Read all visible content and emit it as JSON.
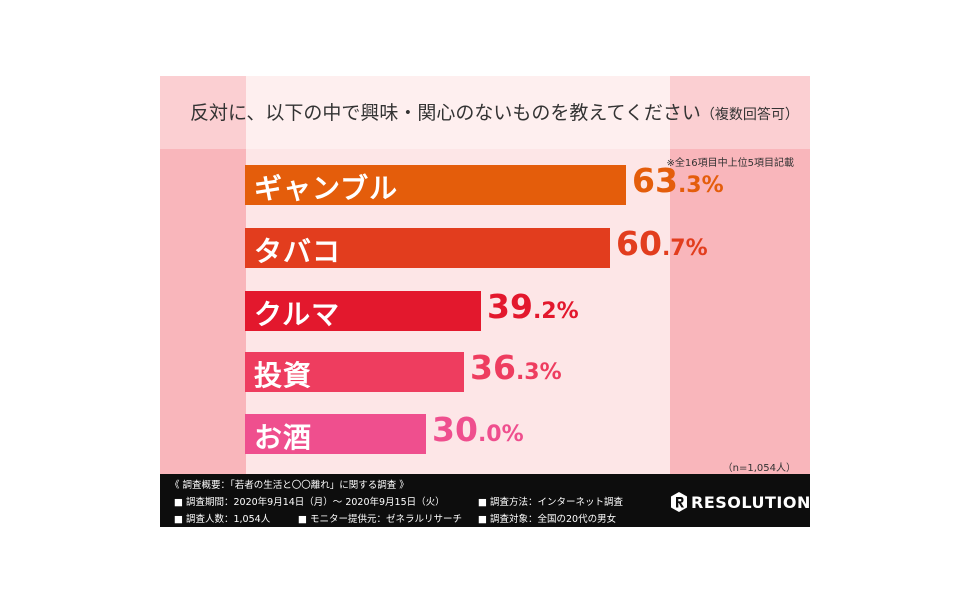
{
  "title": "反対に、以下の中で興味・関心のないものを教えてください",
  "title_suffix": "（複数回答可）",
  "note": "※全16項目中上位5項目記載",
  "sample_size": "（n=1,054人）",
  "colors": [
    "#e45d0b",
    "#e23d1e",
    "#e3182d",
    "#ee3d5f",
    "#ef4f8e"
  ],
  "chart_data": {
    "type": "bar",
    "orientation": "horizontal",
    "categories": [
      "ギャンブル",
      "タバコ",
      "クルマ",
      "投資",
      "お酒"
    ],
    "values": [
      63.3,
      60.7,
      39.2,
      36.3,
      30.0
    ],
    "value_labels": [
      [
        "63",
        ".3%"
      ],
      [
        "60",
        ".7%"
      ],
      [
        "39",
        ".2%"
      ],
      [
        "36",
        ".3%"
      ],
      [
        "30",
        ".0%"
      ]
    ],
    "unit": "%"
  },
  "footer": {
    "heading": "《 調査概要：「若者の生活と〇〇離れ」に関する調査 》",
    "period": "■ 調査期間：2020年9月14日（月）～ 2020年9月15日（火）",
    "method": "■ 調査方法：インターネット調査",
    "count": "■ 調査人数：1,054人",
    "provider": "■ モニター提供元：ゼネラルリサーチ",
    "target": "■ 調査対象：全国の20代の男女",
    "logo": "RESOLUTION"
  }
}
